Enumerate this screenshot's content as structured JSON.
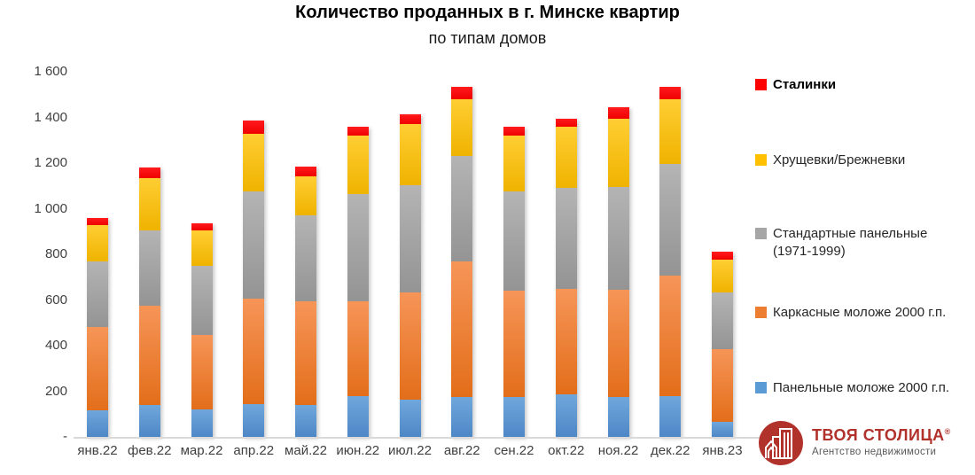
{
  "title": "Количество проданных в г. Минске квартир",
  "subtitle": "по типам домов",
  "chart_data": {
    "type": "bar",
    "stacked": true,
    "grid": false,
    "legend_position": "right",
    "categories": [
      "янв.22",
      "фев.22",
      "мар.22",
      "апр.22",
      "май.22",
      "июн.22",
      "июл.22",
      "авг.22",
      "сен.22",
      "окт.22",
      "ноя.22",
      "дек.22",
      "янв.23"
    ],
    "series": [
      {
        "name": "Панельные моложе 2000 г.п.",
        "color": "#5B9BD5",
        "gradient": [
          "#6FA7DC",
          "#4E87C6"
        ],
        "values": [
          115,
          140,
          120,
          145,
          140,
          180,
          165,
          175,
          175,
          185,
          175,
          180,
          65
        ]
      },
      {
        "name": "Каркасные моложе 2000 г.п.",
        "color": "#ED7D31",
        "gradient": [
          "#F69558",
          "#E36E1A"
        ],
        "values": [
          365,
          435,
          325,
          460,
          455,
          415,
          470,
          595,
          465,
          465,
          470,
          525,
          320
        ]
      },
      {
        "name": "Стандартные панельные (1971-1999)",
        "color": "#A6A6A6",
        "gradient": [
          "#B4B4B4",
          "#949494"
        ],
        "values": [
          290,
          330,
          305,
          470,
          375,
          470,
          470,
          460,
          435,
          440,
          450,
          490,
          250
        ]
      },
      {
        "name": "Хрущевки/Брежневки",
        "color": "#FFC000",
        "gradient": [
          "#FFCE33",
          "#EFB300"
        ],
        "values": [
          160,
          230,
          155,
          255,
          170,
          255,
          265,
          250,
          245,
          270,
          300,
          285,
          140
        ]
      },
      {
        "name": "Сталинки",
        "color": "#FF0000",
        "gradient": [
          "#FF1B1E",
          "#EF0000"
        ],
        "values": [
          30,
          45,
          30,
          55,
          45,
          40,
          45,
          55,
          40,
          35,
          50,
          55,
          35
        ]
      }
    ],
    "totals": [
      960,
      1180,
      935,
      1385,
      1185,
      1360,
      1415,
      1535,
      1360,
      1395,
      1445,
      1535,
      810
    ],
    "ylim": [
      0,
      1600
    ],
    "ytick_step": 200,
    "yticks_top_to_bottom": [
      "1 600",
      "1 400",
      "1 200",
      "1 000",
      "800",
      "600",
      "400",
      "200",
      "-"
    ]
  },
  "legend": {
    "items": [
      {
        "label": "Сталинки",
        "color": "#FF0000",
        "bold": true
      },
      {
        "label": "Хрущевки/Брежневки",
        "color": "#FFC000",
        "bold": false
      },
      {
        "label": "Стандартные панельные (1971-1999)",
        "color": "#A6A6A6",
        "bold": false
      },
      {
        "label": "Каркасные моложе 2000 г.п.",
        "color": "#ED7D31",
        "bold": false
      },
      {
        "label": "Панельные моложе 2000 г.п.",
        "color": "#5B9BD5",
        "bold": false
      }
    ]
  },
  "logo": {
    "brand": "ТВОЯ СТОЛИЦА",
    "registered": "®",
    "tagline": "Агентство недвижимости",
    "brand_color": "#B1312B"
  }
}
